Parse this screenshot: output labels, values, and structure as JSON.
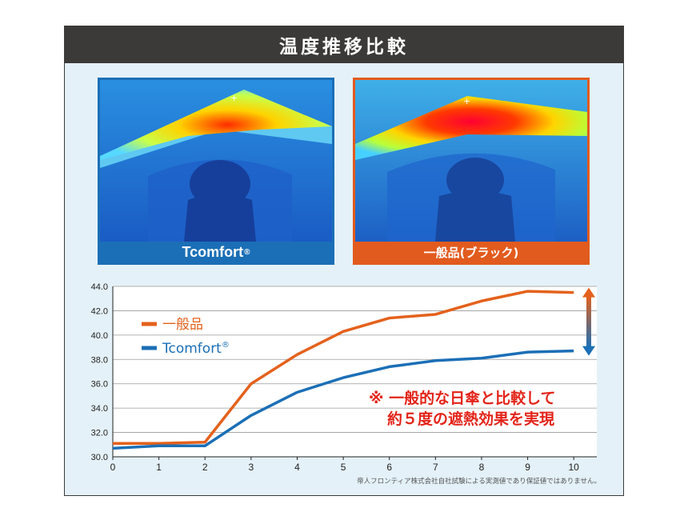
{
  "header": {
    "title": "温度推移比較"
  },
  "photos": {
    "left_caption": "Tcomfort",
    "left_mark": "®",
    "right_caption": "一般品(ブラック)"
  },
  "chart_data": {
    "type": "line",
    "title": "",
    "xlabel": "",
    "ylabel": "",
    "x": [
      0,
      1,
      2,
      3,
      4,
      5,
      6,
      7,
      8,
      9,
      10
    ],
    "xlim": [
      0,
      10.5
    ],
    "ylim": [
      30.0,
      44.0
    ],
    "yticks": [
      "30.0",
      "32.0",
      "34.0",
      "36.0",
      "38.0",
      "40.0",
      "42.0",
      "44.0"
    ],
    "xticks": [
      "0",
      "1",
      "2",
      "3",
      "4",
      "5",
      "6",
      "7",
      "8",
      "9",
      "10"
    ],
    "grid": "horizontal",
    "legend_position": "upper-left",
    "series": [
      {
        "name": "一般品",
        "color": "#e4611c",
        "values": [
          31.1,
          31.1,
          31.2,
          36.0,
          38.4,
          40.3,
          41.4,
          41.7,
          42.8,
          43.6,
          43.5
        ]
      },
      {
        "name": "Tcomfort",
        "legend_mark": "®",
        "color": "#1b6fb6",
        "values": [
          30.7,
          30.9,
          30.9,
          33.4,
          35.3,
          36.5,
          37.4,
          37.9,
          38.1,
          38.6,
          38.7
        ]
      }
    ],
    "annotation_lines": [
      "※ 一般的な日傘と比較して",
      "約５度の遮熱効果を実現"
    ],
    "footnote": "帝人フロンティア株式会社自社試験による実測値であり保証値ではありません。"
  },
  "colors": {
    "accent_orange": "#e4611c",
    "accent_blue": "#1b6fb6",
    "note_red": "#e32419",
    "header_bg": "#3b3a38",
    "panel_bg": "#e4f1f8"
  }
}
